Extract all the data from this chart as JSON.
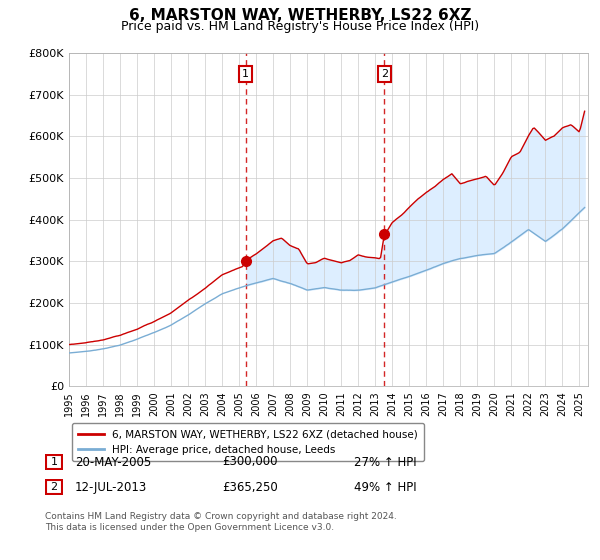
{
  "title": "6, MARSTON WAY, WETHERBY, LS22 6XZ",
  "subtitle": "Price paid vs. HM Land Registry's House Price Index (HPI)",
  "title_fontsize": 11,
  "subtitle_fontsize": 9,
  "ylim": [
    0,
    800000
  ],
  "yticks": [
    0,
    100000,
    200000,
    300000,
    400000,
    500000,
    600000,
    700000,
    800000
  ],
  "ytick_labels": [
    "£0",
    "£100K",
    "£200K",
    "£300K",
    "£400K",
    "£500K",
    "£600K",
    "£700K",
    "£800K"
  ],
  "xlim_start": 1995.0,
  "xlim_end": 2025.5,
  "sale1_year": 2005.38,
  "sale1_price": 300000,
  "sale2_year": 2013.53,
  "sale2_price": 365250,
  "line_color_red": "#cc0000",
  "line_color_blue": "#7aadd4",
  "shade_color": "#ddeeff",
  "dashed_color": "#cc0000",
  "legend_label_red": "6, MARSTON WAY, WETHERBY, LS22 6XZ (detached house)",
  "legend_label_blue": "HPI: Average price, detached house, Leeds",
  "annotation1_label": "1",
  "annotation1_date": "20-MAY-2005",
  "annotation1_price": "£300,000",
  "annotation1_hpi": "27% ↑ HPI",
  "annotation2_label": "2",
  "annotation2_date": "12-JUL-2013",
  "annotation2_price": "£365,250",
  "annotation2_hpi": "49% ↑ HPI",
  "footnote": "Contains HM Land Registry data © Crown copyright and database right 2024.\nThis data is licensed under the Open Government Licence v3.0.",
  "background_color": "#ffffff",
  "plot_bg_color": "#ffffff",
  "grid_color": "#cccccc"
}
